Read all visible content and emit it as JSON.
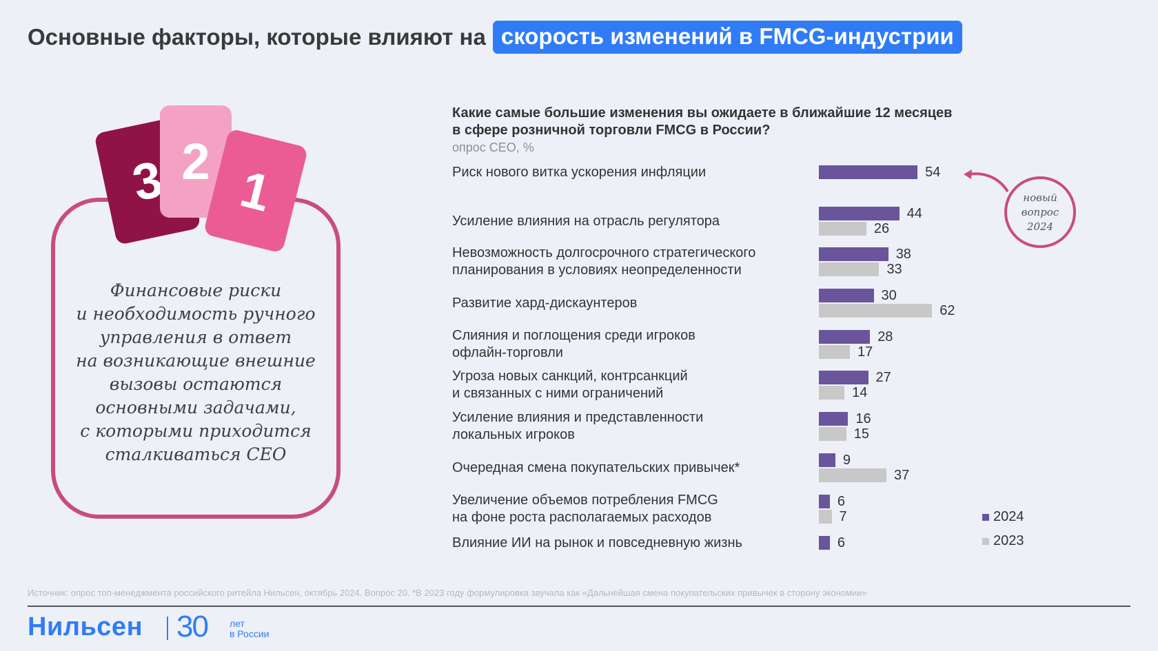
{
  "header": {
    "title_plain": "Основные факторы, которые влияют на",
    "title_highlight": "скорость изменений в FMCG-индустрии"
  },
  "cards": [
    "3",
    "2",
    "1"
  ],
  "quote_lines": [
    "Финансовые риски",
    "и необходимость ручного",
    "управления в ответ",
    "на возникающие внешние",
    "вызовы остаются",
    "основными задачами,",
    "с которыми приходится",
    "сталкиваться CEO"
  ],
  "new_question": [
    "новый",
    "вопрос",
    "2024"
  ],
  "colors": {
    "2024": "#6a559c",
    "2023": "#c8c8c8",
    "accent": "#2f7cf6",
    "pink": "#c84d7d"
  },
  "chart_data": {
    "type": "bar",
    "orientation": "horizontal",
    "title": "Какие самые большие изменения вы ожидаете в ближайшие 12 месяцев в сфере розничной торговли FMCG в России?",
    "title_lines": [
      "Какие самые большие изменения вы ожидаете в ближайшие 12 месяцев",
      "в сфере розничной торговли FMCG в России?"
    ],
    "subtitle": "опрос CEO, %",
    "xlim": [
      0,
      62
    ],
    "categories": [
      [
        "Риск нового витка ускорения инфляции"
      ],
      [
        "Усиление влияния на отрасль регулятора"
      ],
      [
        "Невозможность долгосрочного стратегического",
        "планирования в условиях неопределенности"
      ],
      [
        "Развитие хард-дискаунтеров"
      ],
      [
        "Слияния и поглощения среди игроков",
        "офлайн-торговли"
      ],
      [
        "Угроза новых санкций, контрсанкций",
        "и связанных с ними ограничений"
      ],
      [
        "Усиление влияния и представленности",
        "локальных игроков"
      ],
      [
        "Очередная смена покупательских привычек*"
      ],
      [
        "Увеличение объемов потребления FMCG",
        "на фоне роста располагаемых расходов"
      ],
      [
        "Влияние ИИ на рынок и повседневную жизнь"
      ]
    ],
    "series": [
      {
        "name": "2024",
        "values": [
          54,
          44,
          38,
          30,
          28,
          27,
          16,
          9,
          6,
          6
        ]
      },
      {
        "name": "2023",
        "values": [
          null,
          26,
          33,
          62,
          17,
          14,
          15,
          37,
          7,
          null
        ]
      }
    ],
    "legend": [
      "2024",
      "2023"
    ]
  },
  "footer": {
    "source": "Источник: опрос топ-менеджмента российского ритейла Нильсен, октябрь 2024. Вопрос 20. *В 2023 году формулировка звучала как «Дальнейшая смена покупательских привычек в сторону экономии»",
    "brand": "Нильсен",
    "years": "30",
    "years_caption": [
      "лет",
      "в России"
    ]
  }
}
